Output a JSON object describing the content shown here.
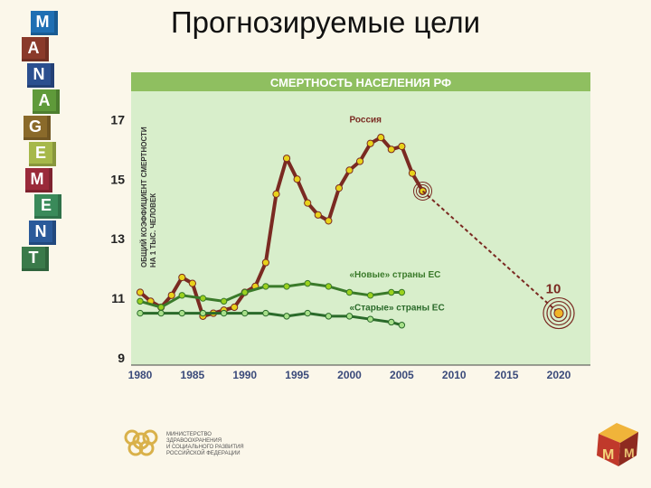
{
  "slide": {
    "title": "Прогнозируемые цели",
    "blocks": [
      {
        "letter": "M",
        "color": "#1f6fb3"
      },
      {
        "letter": "A",
        "color": "#8a3a2a"
      },
      {
        "letter": "N",
        "color": "#2b4f8f"
      },
      {
        "letter": "A",
        "color": "#5f9a3a"
      },
      {
        "letter": "G",
        "color": "#8a6a2a"
      },
      {
        "letter": "E",
        "color": "#a6b84a"
      },
      {
        "letter": "M",
        "color": "#9a2a3a"
      },
      {
        "letter": "E",
        "color": "#3a8a5a"
      },
      {
        "letter": "N",
        "color": "#2a5a9a"
      },
      {
        "letter": "T",
        "color": "#3a7a4a"
      }
    ],
    "logo_text": "МИНИСТЕРСТВО\nЗДРАВООХРАНЕНИЯ\nИ СОЦИАЛЬНОГО РАЗВИТИЯ\nРОССИЙСКОЙ ФЕДЕРАЦИИ",
    "corner_letters": [
      "M",
      "M"
    ]
  },
  "chart_data": {
    "type": "line",
    "title": "СМЕРТНОСТЬ НАСЕЛЕНИЯ РФ",
    "ylabel": "ОБЩИЙ КОЭФФИЦИЕНТ СМЕРТНОСТИ\nНА 1 ТЫС. ЧЕЛОВЕК",
    "xlabel": "",
    "xlim": [
      1980,
      2020
    ],
    "ylim": [
      9,
      17.8
    ],
    "x_ticks": [
      1980,
      1985,
      1990,
      1995,
      2000,
      2005,
      2010,
      2015,
      2020
    ],
    "y_ticks": [
      9,
      11,
      13,
      15,
      17
    ],
    "grid": false,
    "series": [
      {
        "name": "Россия",
        "color": "#7a2a22",
        "marker_color": "#e8d21a",
        "points": [
          [
            1980,
            11.2
          ],
          [
            1981,
            10.9
          ],
          [
            1982,
            10.7
          ],
          [
            1983,
            11.1
          ],
          [
            1984,
            11.7
          ],
          [
            1985,
            11.5
          ],
          [
            1986,
            10.4
          ],
          [
            1987,
            10.5
          ],
          [
            1988,
            10.6
          ],
          [
            1989,
            10.7
          ],
          [
            1990,
            11.2
          ],
          [
            1991,
            11.4
          ],
          [
            1992,
            12.2
          ],
          [
            1993,
            14.5
          ],
          [
            1994,
            15.7
          ],
          [
            1995,
            15.0
          ],
          [
            1996,
            14.2
          ],
          [
            1997,
            13.8
          ],
          [
            1998,
            13.6
          ],
          [
            1999,
            14.7
          ],
          [
            2000,
            15.3
          ],
          [
            2001,
            15.6
          ],
          [
            2002,
            16.2
          ],
          [
            2003,
            16.4
          ],
          [
            2004,
            16.0
          ],
          [
            2005,
            16.1
          ],
          [
            2006,
            15.2
          ],
          [
            2007,
            14.6
          ]
        ]
      },
      {
        "name": "«Новые» страны ЕС",
        "color": "#3a7a2a",
        "marker_color": "#9bd11e",
        "points": [
          [
            1980,
            10.9
          ],
          [
            1982,
            10.7
          ],
          [
            1984,
            11.1
          ],
          [
            1986,
            11.0
          ],
          [
            1988,
            10.9
          ],
          [
            1990,
            11.2
          ],
          [
            1992,
            11.4
          ],
          [
            1994,
            11.4
          ],
          [
            1996,
            11.5
          ],
          [
            1998,
            11.4
          ],
          [
            2000,
            11.2
          ],
          [
            2002,
            11.1
          ],
          [
            2004,
            11.2
          ],
          [
            2005,
            11.2
          ]
        ]
      },
      {
        "name": "«Старые» страны ЕС",
        "color": "#2a6a2a",
        "marker_color": "#a8e08a",
        "points": [
          [
            1980,
            10.5
          ],
          [
            1982,
            10.5
          ],
          [
            1984,
            10.5
          ],
          [
            1986,
            10.5
          ],
          [
            1988,
            10.5
          ],
          [
            1990,
            10.5
          ],
          [
            1992,
            10.5
          ],
          [
            1994,
            10.4
          ],
          [
            1996,
            10.5
          ],
          [
            1998,
            10.4
          ],
          [
            2000,
            10.4
          ],
          [
            2002,
            10.3
          ],
          [
            2004,
            10.2
          ],
          [
            2005,
            10.1
          ]
        ]
      }
    ],
    "forecast": {
      "from": [
        2007,
        14.6
      ],
      "to": [
        2020,
        10.5
      ],
      "label": "10",
      "color": "#7a2a22"
    },
    "annotations": [
      {
        "text": "Россия",
        "series": 0
      },
      {
        "text": "«Новые» страны ЕС",
        "series": 1
      },
      {
        "text": "«Старые» страны ЕС",
        "series": 2
      }
    ]
  }
}
